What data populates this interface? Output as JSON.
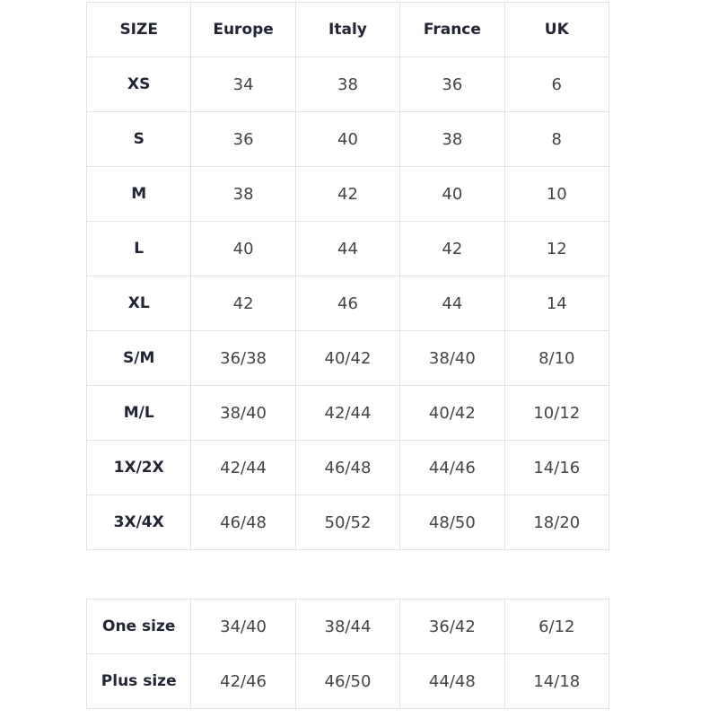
{
  "size_table": {
    "headers": [
      "SIZE",
      "Europe",
      "Italy",
      "France",
      "UK"
    ],
    "rows": [
      [
        "XS",
        "34",
        "38",
        "36",
        "6"
      ],
      [
        "S",
        "36",
        "40",
        "38",
        "8"
      ],
      [
        "M",
        "38",
        "42",
        "40",
        "10"
      ],
      [
        "L",
        "40",
        "44",
        "42",
        "12"
      ],
      [
        "XL",
        "42",
        "46",
        "44",
        "14"
      ],
      [
        "S/M",
        "36/38",
        "40/42",
        "38/40",
        "8/10"
      ],
      [
        "M/L",
        "38/40",
        "42/44",
        "40/42",
        "10/12"
      ],
      [
        "1X/2X",
        "42/44",
        "46/48",
        "44/46",
        "14/16"
      ],
      [
        "3X/4X",
        "46/48",
        "50/52",
        "48/50",
        "18/20"
      ]
    ]
  },
  "special_table": {
    "rows": [
      [
        "One size",
        "34/40",
        "38/44",
        "36/42",
        "6/12"
      ],
      [
        "Plus size",
        "42/46",
        "46/50",
        "44/48",
        "14/18"
      ]
    ]
  },
  "colors": {
    "border": "#e2e2e2",
    "heading_text": "#222533",
    "value_text": "#444444"
  }
}
